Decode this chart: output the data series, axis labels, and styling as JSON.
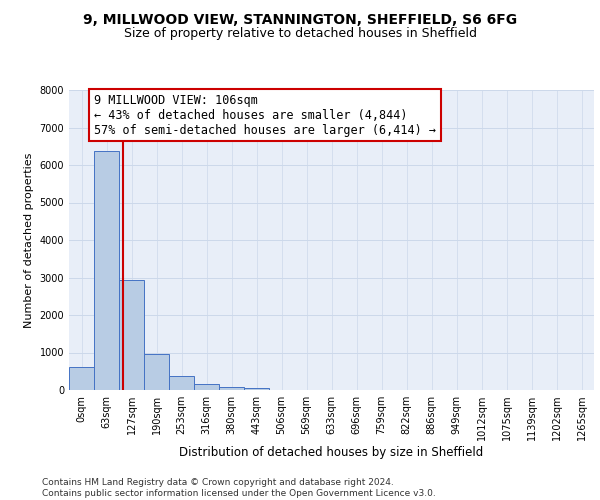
{
  "title1": "9, MILLWOOD VIEW, STANNINGTON, SHEFFIELD, S6 6FG",
  "title2": "Size of property relative to detached houses in Sheffield",
  "xlabel": "Distribution of detached houses by size in Sheffield",
  "ylabel": "Number of detached properties",
  "categories": [
    "0sqm",
    "63sqm",
    "127sqm",
    "190sqm",
    "253sqm",
    "316sqm",
    "380sqm",
    "443sqm",
    "506sqm",
    "569sqm",
    "633sqm",
    "696sqm",
    "759sqm",
    "822sqm",
    "886sqm",
    "949sqm",
    "1012sqm",
    "1075sqm",
    "1139sqm",
    "1202sqm",
    "1265sqm"
  ],
  "values": [
    620,
    6380,
    2930,
    960,
    370,
    155,
    75,
    60,
    0,
    0,
    0,
    0,
    0,
    0,
    0,
    0,
    0,
    0,
    0,
    0,
    0
  ],
  "bar_color": "#b8cce4",
  "bar_edge_color": "#4472c4",
  "vline_pos": 1.65,
  "vline_color": "#cc0000",
  "annotation_line1": "9 MILLWOOD VIEW: 106sqm",
  "annotation_line2": "← 43% of detached houses are smaller (4,844)",
  "annotation_line3": "57% of semi-detached houses are larger (6,414) →",
  "annotation_box_facecolor": "#ffffff",
  "annotation_box_edgecolor": "#cc0000",
  "ylim_max": 8000,
  "yticks": [
    0,
    1000,
    2000,
    3000,
    4000,
    5000,
    6000,
    7000,
    8000
  ],
  "grid_color": "#ccd8ea",
  "plot_bg_color": "#e8eef8",
  "footer_line1": "Contains HM Land Registry data © Crown copyright and database right 2024.",
  "footer_line2": "Contains public sector information licensed under the Open Government Licence v3.0.",
  "title1_fontsize": 10,
  "title2_fontsize": 9,
  "xlabel_fontsize": 8.5,
  "ylabel_fontsize": 8,
  "tick_fontsize": 7,
  "annot_fontsize": 8.5,
  "footer_fontsize": 6.5
}
